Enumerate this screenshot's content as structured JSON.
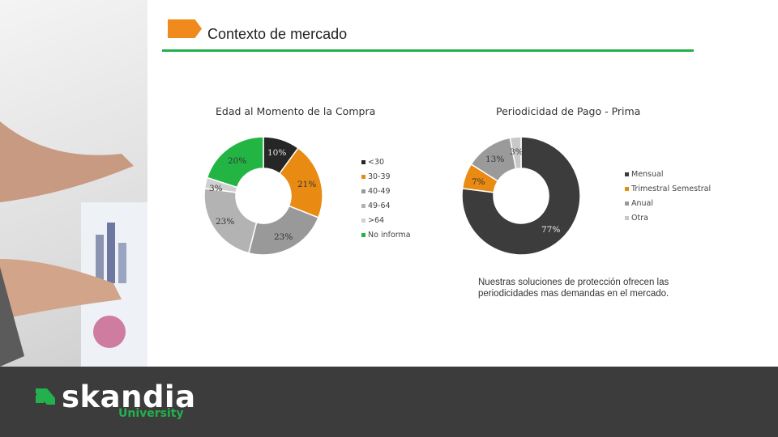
{
  "header": {
    "title": "Contexto de mercado"
  },
  "colors": {
    "accent_orange": "#f08a1c",
    "accent_green": "#22b14c",
    "footer_bg": "#3c3c3c"
  },
  "chart_data": [
    {
      "type": "pie",
      "title": "Edad al Momento de la Compra",
      "categories": [
        "<30",
        "30-39",
        "40-49",
        "49-64",
        ">64",
        "No informa"
      ],
      "values": [
        10,
        21,
        23,
        23,
        3,
        20
      ],
      "labels": [
        "10%",
        "21%",
        "23%",
        "23%",
        "3%",
        "20%"
      ],
      "colors": [
        "#262626",
        "#e98a12",
        "#999999",
        "#b3b3b3",
        "#d0d0d0",
        "#23b544"
      ],
      "legend_position": "right"
    },
    {
      "type": "pie",
      "title": "Periodicidad de Pago - Prima",
      "categories": [
        "Mensual",
        "Trimestral Semestral",
        "Anual",
        "Otra"
      ],
      "values": [
        77,
        7,
        13,
        3
      ],
      "labels": [
        "77%",
        "7%",
        "13%",
        "3%"
      ],
      "colors": [
        "#3c3c3c",
        "#e98a12",
        "#9a9a9a",
        "#c8c8c8"
      ],
      "legend_position": "right"
    }
  ],
  "note": "Nuestras soluciones de protección ofrecen las periodicidades mas demandas en el mercado.",
  "footer": {
    "logo_word": "skandia",
    "logo_sub": "University",
    "logo_icon": "skandia-leaf-icon"
  }
}
